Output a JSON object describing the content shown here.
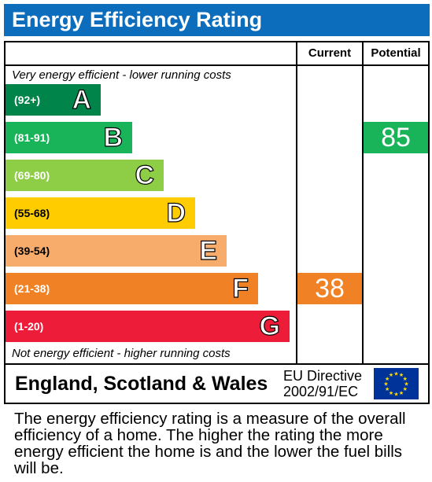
{
  "title": "Energy Efficiency Rating",
  "chart_data": {
    "type": "bar",
    "columns": [
      "Current",
      "Potential"
    ],
    "top_note": "Very energy efficient - lower running costs",
    "bottom_note": "Not energy efficient - higher running costs",
    "bands": [
      {
        "letter": "A",
        "range": "(92+)",
        "color": "#00844a"
      },
      {
        "letter": "B",
        "range": "(81-91)",
        "color": "#19b459"
      },
      {
        "letter": "C",
        "range": "(69-80)",
        "color": "#8dce46"
      },
      {
        "letter": "D",
        "range": "(55-68)",
        "color": "#ffcc00"
      },
      {
        "letter": "E",
        "range": "(39-54)",
        "color": "#f7ac6b"
      },
      {
        "letter": "F",
        "range": "(21-38)",
        "color": "#f08125"
      },
      {
        "letter": "G",
        "range": "(1-20)",
        "color": "#ed1c38"
      }
    ],
    "current": {
      "value": 38,
      "band": "F",
      "color": "#f08125"
    },
    "potential": {
      "value": 85,
      "band": "B",
      "color": "#19b459"
    }
  },
  "footer": {
    "country": "England, Scotland & Wales",
    "directive_line1": "EU Directive",
    "directive_line2": "2002/91/EC",
    "flag_color": "#003399",
    "star_color": "#ffdd00"
  },
  "footnote": "The energy efficiency rating is a measure of the overall efficiency of a home. The higher the rating the more energy efficient the home is and the lower the fuel bills will be."
}
